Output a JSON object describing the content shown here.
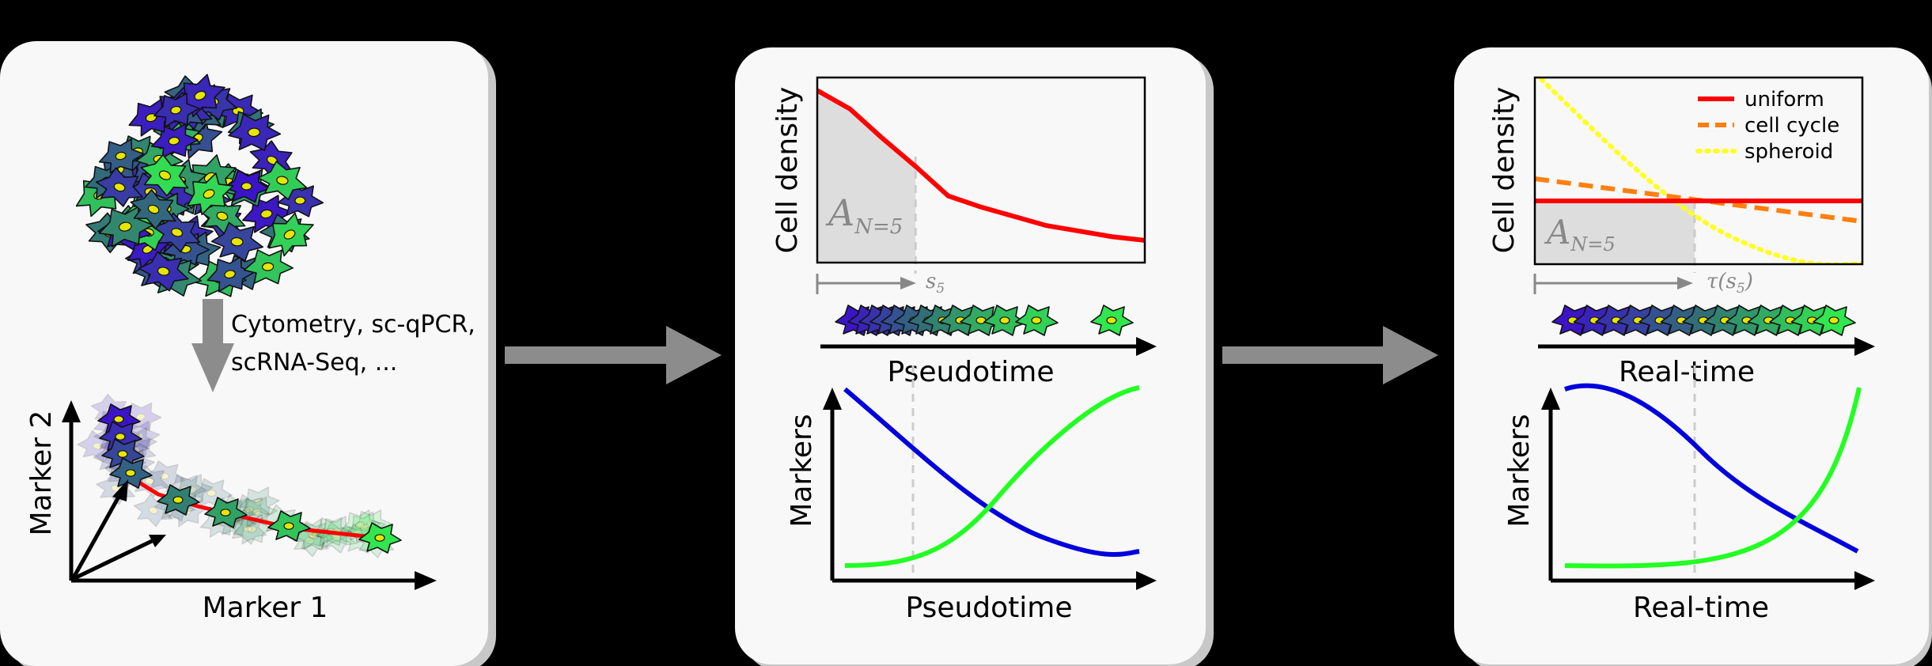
{
  "colors": {
    "background": "#000000",
    "panel": "#f8f8f8",
    "shadow": "#c8c8c8",
    "arrow": "#8c8c8c",
    "red": "#ff0000",
    "blue": "#0000dd",
    "green": "#22ff22",
    "orange": "#ff7f0e",
    "yellow": "#ffff22"
  },
  "panel1": {
    "method_text_line1": "Cytometry, sc-qPCR,",
    "method_text_line2": "scRNA-Seq, ...",
    "xlabel": "Marker 1",
    "ylabel": "Marker 2"
  },
  "panel2": {
    "density": {
      "ylabel": "Cell density",
      "area_label": "A",
      "area_sub": "N=5",
      "marker_label": "s",
      "marker_sub": "5",
      "curve": [
        [
          0,
          0.93
        ],
        [
          0.1,
          0.83
        ],
        [
          0.2,
          0.67
        ],
        [
          0.3,
          0.52
        ],
        [
          0.4,
          0.36
        ],
        [
          0.5,
          0.3
        ],
        [
          0.6,
          0.25
        ],
        [
          0.7,
          0.2
        ],
        [
          0.8,
          0.17
        ],
        [
          0.9,
          0.14
        ],
        [
          1.0,
          0.12
        ]
      ],
      "s5": 0.3
    },
    "axis_label": "Pseudotime",
    "markers": {
      "ylabel": "Markers",
      "xlabel": "Pseudotime"
    }
  },
  "panel3": {
    "density": {
      "ylabel": "Cell density",
      "area_label": "A",
      "area_sub": "N=5",
      "marker_label": "τ(s",
      "marker_sub": "5",
      "marker_close": ")",
      "tau": 0.5,
      "legend": [
        {
          "label": "uniform",
          "style": "solid",
          "color": "#ff0000"
        },
        {
          "label": "cell cycle",
          "style": "dashed",
          "color": "#ff7f0e"
        },
        {
          "label": "spheroid",
          "style": "dotted",
          "color": "#ffff22"
        }
      ]
    },
    "axis_label": "Real-time",
    "markers": {
      "ylabel": "Markers",
      "xlabel": "Real-time"
    }
  }
}
